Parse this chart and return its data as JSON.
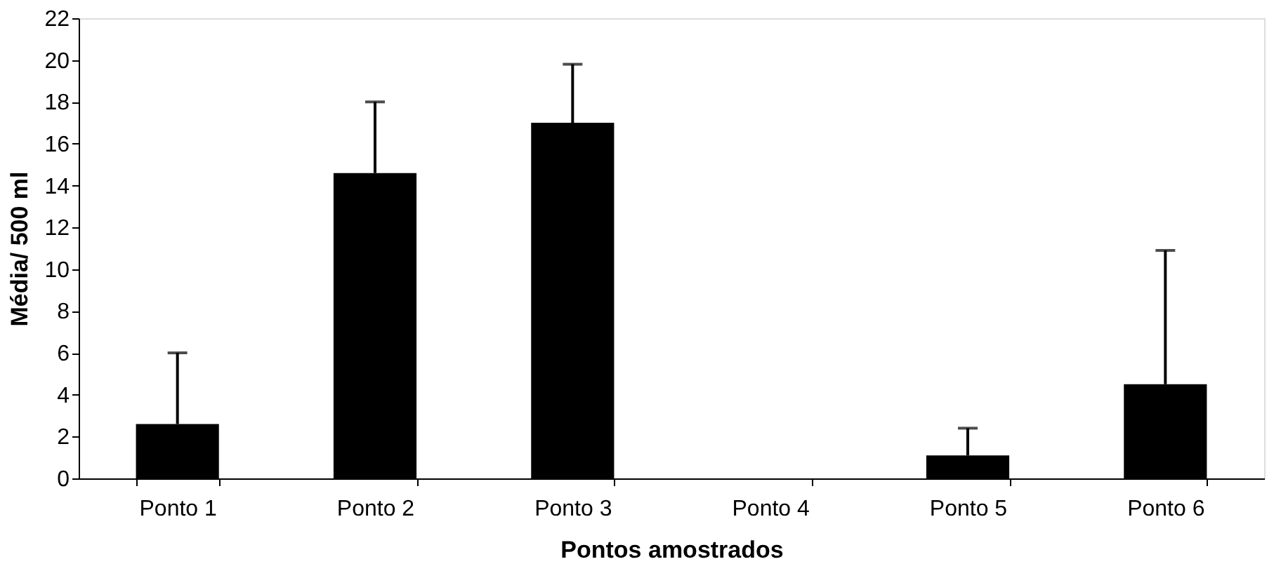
{
  "chart_data": {
    "type": "bar",
    "xlabel": "Pontos amostrados",
    "ylabel": "Média/ 500 ml",
    "categories": [
      "Ponto 1",
      "Ponto 2",
      "Ponto 3",
      "Ponto 4",
      "Ponto 5",
      "Ponto 6"
    ],
    "values": [
      2.6,
      14.6,
      17.0,
      0,
      1.1,
      4.5
    ],
    "errors": [
      [
        2.6,
        6.0
      ],
      [
        14.6,
        18.0
      ],
      [
        17.0,
        19.8
      ],
      null,
      [
        1.1,
        2.4
      ],
      [
        4.5,
        10.9
      ]
    ],
    "color": "#000000",
    "ylim": [
      0,
      22
    ],
    "yticks": [
      0,
      2,
      4,
      6,
      8,
      10,
      12,
      14,
      16,
      18,
      20,
      22
    ],
    "grid": false
  }
}
